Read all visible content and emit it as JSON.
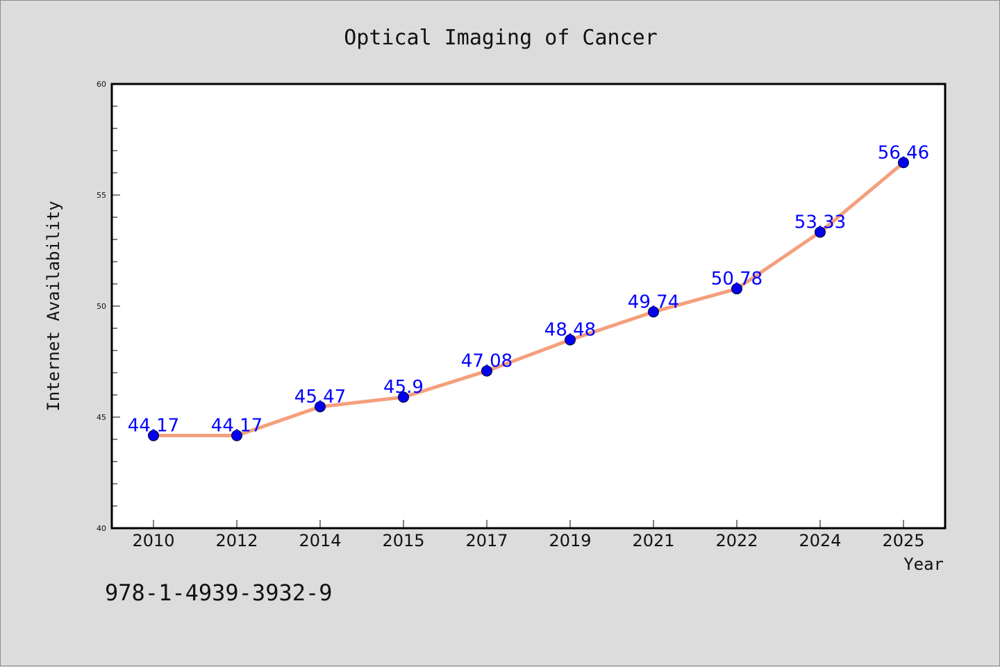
{
  "chart_data": {
    "type": "line",
    "title": "Optical Imaging of Cancer",
    "xlabel": "Year",
    "ylabel": "Internet Availability",
    "categories": [
      "2010",
      "2012",
      "2014",
      "2015",
      "2017",
      "2019",
      "2021",
      "2022",
      "2024",
      "2025"
    ],
    "series": [
      {
        "values": [
          44.17,
          44.17,
          45.47,
          45.9,
          47.08,
          48.48,
          49.74,
          50.78,
          53.33,
          56.46
        ],
        "labels": [
          "44.17",
          "44.17",
          "45.47",
          "45.9",
          "47.08",
          "48.48",
          "49.74",
          "50.78",
          "53.33",
          "56.46"
        ]
      }
    ],
    "ylim": [
      40,
      60
    ],
    "y_ticks": [
      "40",
      "45",
      "50",
      "55",
      "60"
    ],
    "grid": false,
    "colors": {
      "line": "#f4a07c",
      "marker": "#0000ee",
      "label": "#0000ff",
      "background": "#dcdcdc",
      "plot_bg": "#ffffff"
    }
  },
  "footnote": "978-1-4939-3932-9"
}
